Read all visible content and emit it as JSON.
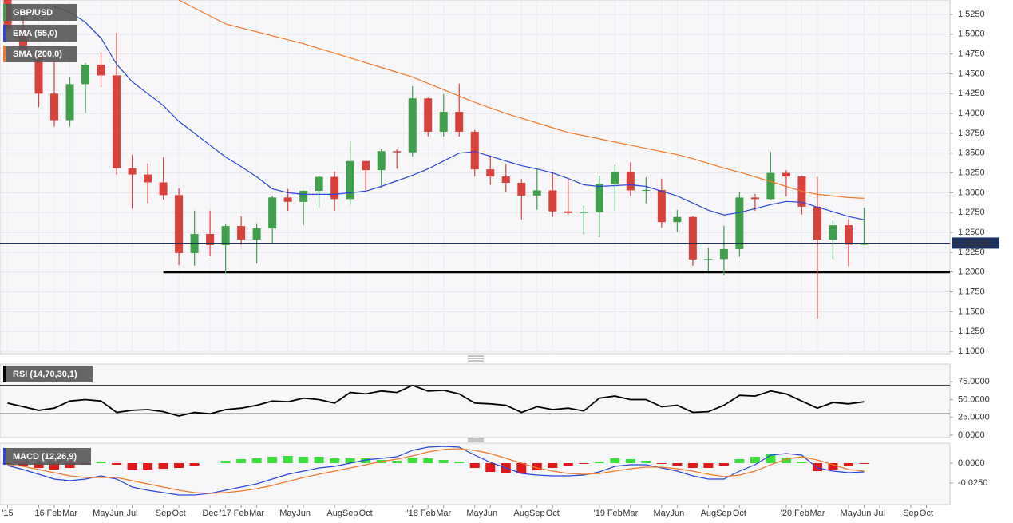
{
  "chart_data": [
    {
      "type": "candlestick",
      "name": "GBP/USD",
      "x": [
        "2015-11",
        "2015-12",
        "2016-01",
        "2016-02",
        "2016-03",
        "2016-04",
        "2016-05",
        "2016-06",
        "2016-07",
        "2016-08",
        "2016-09",
        "2016-10",
        "2016-11",
        "2016-12",
        "2017-01",
        "2017-02",
        "2017-03",
        "2017-04",
        "2017-05",
        "2017-06",
        "2017-07",
        "2017-08",
        "2017-09",
        "2017-10",
        "2017-11",
        "2017-12",
        "2018-01",
        "2018-02",
        "2018-03",
        "2018-04",
        "2018-05",
        "2018-06",
        "2018-07",
        "2018-08",
        "2018-09",
        "2018-10",
        "2018-11",
        "2018-12",
        "2019-01",
        "2019-02",
        "2019-03",
        "2019-04",
        "2019-05",
        "2019-06",
        "2019-07",
        "2019-08",
        "2019-09",
        "2019-10",
        "2019-11",
        "2019-12",
        "2020-01",
        "2020-02",
        "2020-03",
        "2020-04",
        "2020-05",
        "2020-06"
      ],
      "open": [
        1.5433,
        1.5066,
        1.4736,
        1.425,
        1.3915,
        1.437,
        1.4615,
        1.448,
        1.331,
        1.323,
        1.313,
        1.297,
        1.224,
        1.248,
        1.234,
        1.258,
        1.241,
        1.255,
        1.294,
        1.2885,
        1.3025,
        1.32,
        1.292,
        1.34,
        1.3285,
        1.3525,
        1.351,
        1.419,
        1.377,
        1.402,
        1.377,
        1.3295,
        1.3205,
        1.3125,
        1.2965,
        1.303,
        1.2765,
        1.2745,
        1.2755,
        1.311,
        1.326,
        1.303,
        1.3035,
        1.263,
        1.2695,
        1.216,
        1.2165,
        1.229,
        1.294,
        1.292,
        1.325,
        1.3205,
        1.2825,
        1.241,
        1.259,
        1.2345
      ],
      "high": [
        1.5508,
        1.524,
        1.4814,
        1.4668,
        1.4459,
        1.4637,
        1.477,
        1.5018,
        1.3481,
        1.3372,
        1.3445,
        1.3056,
        1.2775,
        1.2775,
        1.2606,
        1.2706,
        1.2615,
        1.2965,
        1.3048,
        1.303,
        1.3212,
        1.3268,
        1.3658,
        1.34,
        1.355,
        1.355,
        1.4345,
        1.42,
        1.4245,
        1.4377,
        1.3793,
        1.3473,
        1.3363,
        1.3173,
        1.3298,
        1.3258,
        1.3175,
        1.2838,
        1.3215,
        1.335,
        1.3383,
        1.3196,
        1.3177,
        1.2783,
        1.2708,
        1.231,
        1.2582,
        1.3012,
        1.2985,
        1.3515,
        1.3285,
        1.3212,
        1.32,
        1.2648,
        1.2667,
        1.2813
      ],
      "low": [
        1.5027,
        1.4744,
        1.408,
        1.3835,
        1.3836,
        1.4005,
        1.4332,
        1.3229,
        1.2798,
        1.2866,
        1.2915,
        1.2085,
        1.208,
        1.2199,
        1.1987,
        1.2345,
        1.2109,
        1.2365,
        1.2771,
        1.2589,
        1.2811,
        1.2774,
        1.285,
        1.3027,
        1.3062,
        1.3302,
        1.346,
        1.3712,
        1.371,
        1.371,
        1.3205,
        1.31,
        1.301,
        1.2662,
        1.2786,
        1.2696,
        1.2723,
        1.2477,
        1.244,
        1.2773,
        1.296,
        1.2866,
        1.256,
        1.2506,
        1.208,
        1.2015,
        1.1959,
        1.2195,
        1.277,
        1.2905,
        1.2955,
        1.2725,
        1.141,
        1.2165,
        1.2076,
        1.234
      ],
      "close": [
        1.5066,
        1.4736,
        1.425,
        1.3915,
        1.437,
        1.4615,
        1.448,
        1.331,
        1.323,
        1.313,
        1.297,
        1.224,
        1.248,
        1.234,
        1.258,
        1.241,
        1.255,
        1.294,
        1.2885,
        1.3025,
        1.32,
        1.292,
        1.34,
        1.3285,
        1.3525,
        1.351,
        1.419,
        1.377,
        1.402,
        1.377,
        1.3295,
        1.3205,
        1.3125,
        1.2965,
        1.303,
        1.2765,
        1.2745,
        1.2755,
        1.311,
        1.326,
        1.303,
        1.3035,
        1.263,
        1.2695,
        1.216,
        1.2165,
        1.229,
        1.294,
        1.292,
        1.325,
        1.3205,
        1.2825,
        1.241,
        1.259,
        1.2345,
        1.2365
      ],
      "up_color": "#3f9f4a",
      "down_color": "#d9413b",
      "legend_color": "#555555",
      "overlays": [
        {
          "name": "EMA (55,0)",
          "color": "#2a45d8",
          "values": [
            null,
            null,
            null,
            1.535,
            1.528,
            1.515,
            1.495,
            1.462,
            1.44,
            1.425,
            1.41,
            1.39,
            1.375,
            1.36,
            1.345,
            1.333,
            1.32,
            1.305,
            1.3,
            1.298,
            1.298,
            1.298,
            1.3,
            1.302,
            1.308,
            1.315,
            1.322,
            1.33,
            1.34,
            1.35,
            1.352,
            1.346,
            1.34,
            1.334,
            1.33,
            1.325,
            1.318,
            1.31,
            1.308,
            1.309,
            1.31,
            1.308,
            1.302,
            1.296,
            1.287,
            1.278,
            1.272,
            1.275,
            1.28,
            1.285,
            1.289,
            1.288,
            1.282,
            1.276,
            1.27,
            1.266
          ]
        },
        {
          "name": "SMA (200,0)",
          "color": "#f07a2a",
          "values": [
            null,
            null,
            null,
            null,
            null,
            null,
            null,
            null,
            null,
            null,
            null,
            1.543,
            1.533,
            1.523,
            1.513,
            1.508,
            1.503,
            1.498,
            1.493,
            1.488,
            1.482,
            1.476,
            1.47,
            1.464,
            1.458,
            1.452,
            1.446,
            1.438,
            1.43,
            1.422,
            1.414,
            1.407,
            1.4,
            1.394,
            1.388,
            1.382,
            1.376,
            1.372,
            1.368,
            1.364,
            1.36,
            1.356,
            1.352,
            1.348,
            1.343,
            1.337,
            1.331,
            1.326,
            1.32,
            1.314,
            1.308,
            1.302,
            1.298,
            1.296,
            1.294,
            1.293
          ]
        }
      ],
      "xlim": [
        "2015-10",
        "2020-11"
      ],
      "ylim": [
        1.097,
        1.5431
      ],
      "yticks": [
        {
          "value": 1.1,
          "label": "1.1000"
        },
        {
          "value": 1.125,
          "label": "1.1250"
        },
        {
          "value": 1.15,
          "label": "1.1500"
        },
        {
          "value": 1.175,
          "label": "1.1750"
        },
        {
          "value": 1.2,
          "label": "1.2000"
        },
        {
          "value": 1.225,
          "label": "1.2250"
        },
        {
          "value": 1.25,
          "label": "1.2500"
        },
        {
          "value": 1.275,
          "label": "1.2750"
        },
        {
          "value": 1.3,
          "label": "1.3000"
        },
        {
          "value": 1.325,
          "label": "1.3250"
        },
        {
          "value": 1.35,
          "label": "1.3500"
        },
        {
          "value": 1.375,
          "label": "1.3750"
        },
        {
          "value": 1.4,
          "label": "1.4000"
        },
        {
          "value": 1.425,
          "label": "1.4250"
        },
        {
          "value": 1.45,
          "label": "1.4500"
        },
        {
          "value": 1.475,
          "label": "1.4750"
        },
        {
          "value": 1.5,
          "label": "1.5000"
        },
        {
          "value": 1.525,
          "label": "1.5250"
        }
      ],
      "grid": true,
      "last_price": {
        "value": 1.23653,
        "label": "1.236530"
      },
      "last_price_color": "#1c3360",
      "support": {
        "value": 1.2,
        "from": "2016-09"
      }
    },
    {
      "type": "line",
      "title": "RSI (14,70,30,1)",
      "color": "#000000",
      "legend_color": "#555555",
      "values": [
        45,
        40,
        35,
        38,
        48,
        50,
        48,
        32,
        35,
        36,
        33,
        27,
        32,
        30,
        36,
        38,
        42,
        48,
        47,
        52,
        50,
        45,
        60,
        58,
        62,
        60,
        70,
        62,
        63,
        58,
        45,
        44,
        42,
        32,
        40,
        36,
        38,
        34,
        52,
        55,
        50,
        50,
        40,
        42,
        32,
        33,
        42,
        56,
        55,
        62,
        58,
        48,
        38,
        46,
        44,
        47
      ],
      "ylim": [
        0,
        100
      ],
      "yticks": [
        {
          "value": 75,
          "label": "75.0000"
        },
        {
          "value": 50,
          "label": "50.0000"
        },
        {
          "value": 25,
          "label": "25.0000"
        },
        {
          "value": 0,
          "label": "0.0000"
        }
      ],
      "levels": [
        70,
        30
      ]
    },
    {
      "type": "macd",
      "title": "MACD (12,26,9)",
      "legend_color": "#555555",
      "macd": {
        "color": "#2a45d8",
        "values": [
          -0.003,
          -0.008,
          -0.014,
          -0.02,
          -0.022,
          -0.02,
          -0.016,
          -0.02,
          -0.03,
          -0.034,
          -0.037,
          -0.04,
          -0.04,
          -0.038,
          -0.034,
          -0.03,
          -0.026,
          -0.02,
          -0.014,
          -0.01,
          -0.006,
          -0.004,
          0,
          0.004,
          0.006,
          0.008,
          0.016,
          0.02,
          0.021,
          0.02,
          0.01,
          0.001,
          -0.006,
          -0.013,
          -0.015,
          -0.016,
          -0.016,
          -0.015,
          -0.011,
          -0.004,
          -0.002,
          -0.002,
          -0.006,
          -0.01,
          -0.016,
          -0.02,
          -0.02,
          -0.01,
          -0.002,
          0.01,
          0.012,
          0.01,
          -0.006,
          -0.01,
          -0.012,
          -0.011
        ]
      },
      "signal": {
        "color": "#f07a2a",
        "values": [
          -0.002,
          -0.004,
          -0.008,
          -0.012,
          -0.016,
          -0.018,
          -0.018,
          -0.018,
          -0.022,
          -0.026,
          -0.03,
          -0.034,
          -0.037,
          -0.038,
          -0.037,
          -0.035,
          -0.032,
          -0.028,
          -0.023,
          -0.018,
          -0.014,
          -0.01,
          -0.006,
          -0.002,
          0.002,
          0.005,
          0.009,
          0.014,
          0.017,
          0.018,
          0.016,
          0.012,
          0.006,
          0,
          -0.006,
          -0.01,
          -0.013,
          -0.014,
          -0.013,
          -0.01,
          -0.007,
          -0.005,
          -0.005,
          -0.007,
          -0.01,
          -0.014,
          -0.017,
          -0.015,
          -0.01,
          -0.002,
          0.005,
          0.008,
          0.004,
          -0.002,
          -0.008,
          -0.01
        ]
      },
      "histogram": {
        "up_color": "#38e038",
        "down_color": "#e01818",
        "values": [
          -0.001,
          -0.004,
          -0.006,
          -0.008,
          -0.006,
          -0.002,
          0.002,
          -0.002,
          -0.008,
          -0.008,
          -0.007,
          -0.006,
          -0.003,
          0,
          0.003,
          0.005,
          0.006,
          0.008,
          0.009,
          0.008,
          0.008,
          0.006,
          0.006,
          0.006,
          0.004,
          0.003,
          0.007,
          0.006,
          0.004,
          0.002,
          -0.006,
          -0.011,
          -0.012,
          -0.013,
          -0.009,
          -0.006,
          -0.003,
          -0.001,
          0.002,
          0.006,
          0.005,
          0.003,
          -0.001,
          -0.003,
          -0.006,
          -0.006,
          -0.003,
          0.005,
          0.008,
          0.012,
          0.007,
          0.002,
          -0.01,
          -0.008,
          -0.004,
          -0.001
        ]
      },
      "ylim": [
        -0.052,
        0.025
      ],
      "yticks": [
        {
          "value": 0,
          "label": "0.0000"
        },
        {
          "value": -0.025,
          "label": "-0.0250"
        }
      ],
      "xticks": [
        {
          "value": "2015-11",
          "label": "'15"
        },
        {
          "value": "2016-01",
          "label": "'16"
        },
        {
          "value": "2016-02",
          "label": "Feb"
        },
        {
          "value": "2016-03",
          "label": "Mar"
        },
        {
          "value": "2016-05",
          "label": "May"
        },
        {
          "value": "2016-06",
          "label": "Jun"
        },
        {
          "value": "2016-07",
          "label": "Jul"
        },
        {
          "value": "2016-09",
          "label": "Sep"
        },
        {
          "value": "2016-10",
          "label": "Oct"
        },
        {
          "value": "2016-12",
          "label": "Dec"
        },
        {
          "value": "2017-01",
          "label": "'17"
        },
        {
          "value": "2017-02",
          "label": "Feb"
        },
        {
          "value": "2017-03",
          "label": "Mar"
        },
        {
          "value": "2017-05",
          "label": "May"
        },
        {
          "value": "2017-06",
          "label": "Jun"
        },
        {
          "value": "2017-08",
          "label": "Aug"
        },
        {
          "value": "2017-09",
          "label": "Sep"
        },
        {
          "value": "2017-10",
          "label": "Oct"
        },
        {
          "value": "2018-01",
          "label": "'18"
        },
        {
          "value": "2018-02",
          "label": "Feb"
        },
        {
          "value": "2018-03",
          "label": "Mar"
        },
        {
          "value": "2018-05",
          "label": "May"
        },
        {
          "value": "2018-06",
          "label": "Jun"
        },
        {
          "value": "2018-08",
          "label": "Aug"
        },
        {
          "value": "2018-09",
          "label": "Sep"
        },
        {
          "value": "2018-10",
          "label": "Oct"
        },
        {
          "value": "2019-01",
          "label": "'19"
        },
        {
          "value": "2019-02",
          "label": "Feb"
        },
        {
          "value": "2019-03",
          "label": "Mar"
        },
        {
          "value": "2019-05",
          "label": "May"
        },
        {
          "value": "2019-06",
          "label": "Jun"
        },
        {
          "value": "2019-08",
          "label": "Aug"
        },
        {
          "value": "2019-09",
          "label": "Sep"
        },
        {
          "value": "2019-10",
          "label": "Oct"
        },
        {
          "value": "2020-01",
          "label": "'20"
        },
        {
          "value": "2020-02",
          "label": "Feb"
        },
        {
          "value": "2020-03",
          "label": "Mar"
        },
        {
          "value": "2020-05",
          "label": "May"
        },
        {
          "value": "2020-06",
          "label": "Jun"
        },
        {
          "value": "2020-07",
          "label": "Jul"
        },
        {
          "value": "2020-09",
          "label": "Sep"
        },
        {
          "value": "2020-10",
          "label": "Oct"
        }
      ]
    }
  ]
}
